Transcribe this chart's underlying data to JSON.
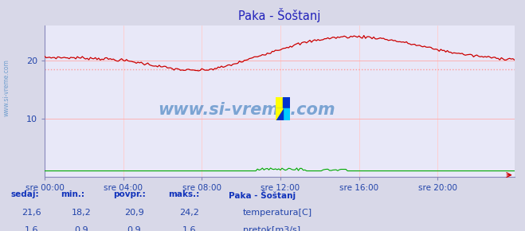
{
  "title": "Paka - Šoštanj",
  "bg_color": "#d8d8e8",
  "plot_bg_color": "#e8e8f8",
  "grid_color": "#ffaaaa",
  "grid_color_v": "#ffcccc",
  "title_color": "#2222bb",
  "axis_label_color": "#2244aa",
  "watermark": "www.si-vreme.com",
  "xlabel_ticks": [
    "sre 00:00",
    "sre 04:00",
    "sre 08:00",
    "sre 12:00",
    "sre 16:00",
    "sre 20:00"
  ],
  "ylim": [
    0,
    26
  ],
  "xlim": [
    0,
    287
  ],
  "avg_line_value": 18.5,
  "temp_color": "#cc0000",
  "flow_color": "#00aa00",
  "avg_color": "#ff9999",
  "footer_label_color": "#1133bb",
  "footer_value_color": "#2244aa",
  "sedaj_label": "sedaj:",
  "min_label": "min.:",
  "povpr_label": "povpr.:",
  "maks_label": "maks.:",
  "station_label": "Paka - Šoštanj",
  "temp_legend": "temperatura[C]",
  "flow_legend": "pretok[m3/s]",
  "temp_sedaj": "21,6",
  "temp_min": "18,2",
  "temp_povpr": "20,9",
  "temp_maks": "24,2",
  "flow_sedaj": "1,6",
  "flow_min": "0,9",
  "flow_povpr": "0,9",
  "flow_maks": "1,6",
  "sidebar_text": "www.si-vreme.com",
  "sidebar_color": "#6699cc"
}
